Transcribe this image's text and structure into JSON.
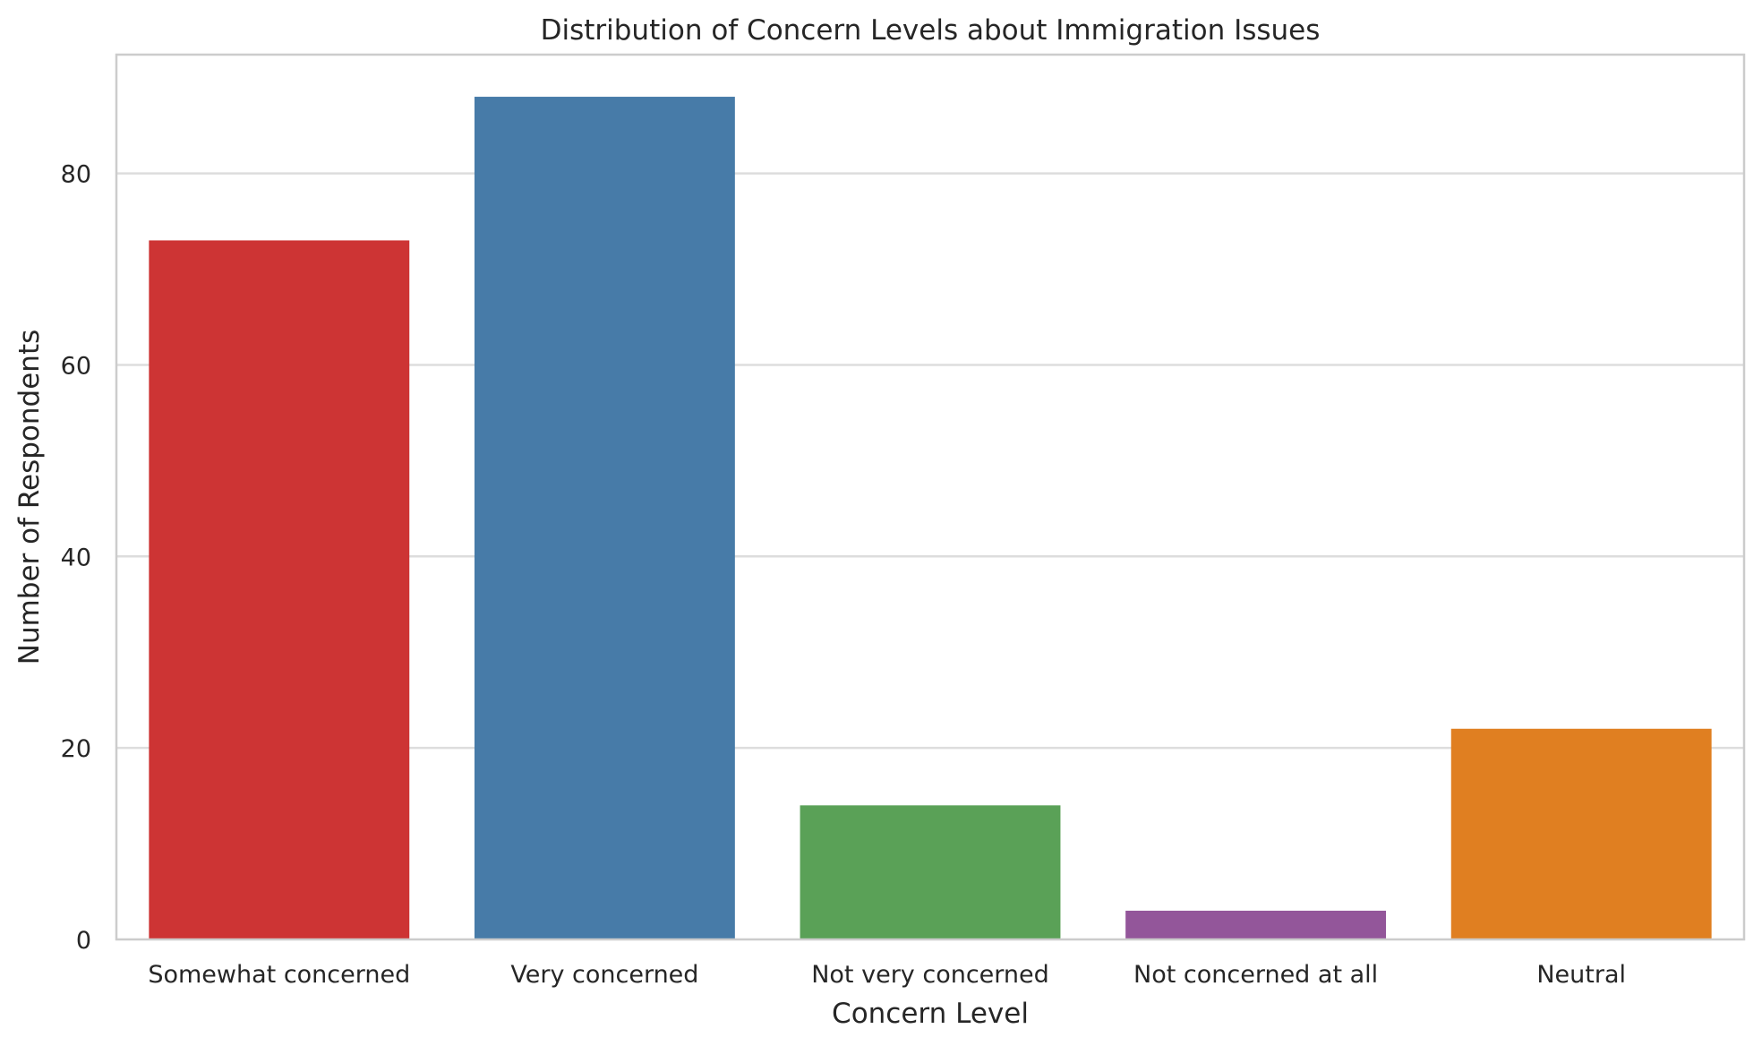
{
  "chart_data": {
    "type": "bar",
    "title": "Distribution of Concern Levels about Immigration Issues",
    "xlabel": "Concern Level",
    "ylabel": "Number of Respondents",
    "categories": [
      "Somewhat concerned",
      "Very concerned",
      "Not very concerned",
      "Not concerned at all",
      "Neutral"
    ],
    "values": [
      73,
      88,
      14,
      3,
      22
    ],
    "colors": [
      "#cd3434",
      "#477ba8",
      "#5aa157",
      "#93569a",
      "#e07f21"
    ],
    "yticks": [
      "0",
      "20",
      "40",
      "60",
      "80"
    ],
    "ylim": [
      0,
      92.4
    ],
    "grid": "horizontal",
    "legend": "none"
  }
}
